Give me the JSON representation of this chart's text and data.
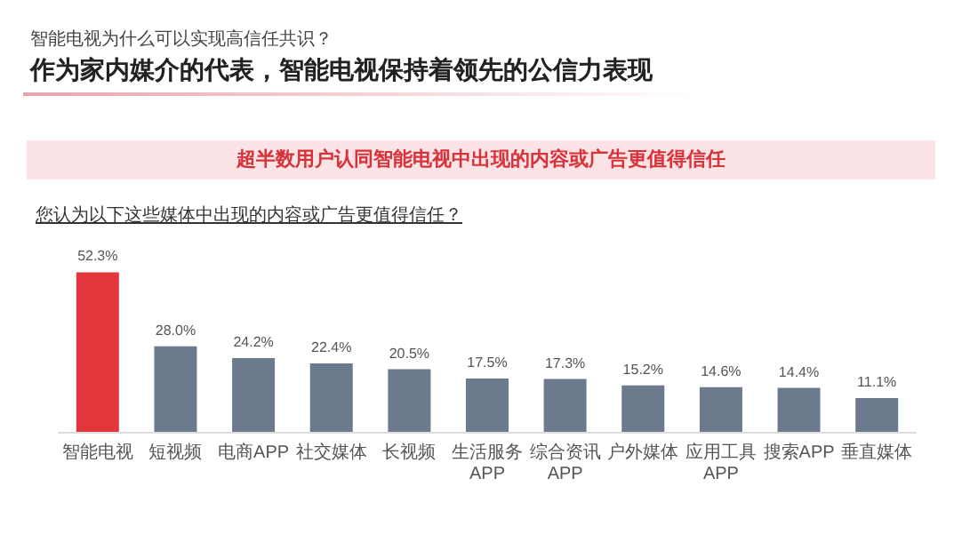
{
  "chart_data": {
    "type": "bar",
    "subtitle": "智能电视为什么可以实现高信任共识？",
    "title": "作为家内媒介的代表，智能电视保持着领先的公信力表现",
    "annotations": [
      "超半数用户认同智能电视中出现的内容或广告更值得信任"
    ],
    "ylabel": "您认为以下这些媒体中出现的内容或广告更值得信任？",
    "categories": [
      "智能电视",
      "短视频",
      "电商APP",
      "社交媒体",
      "长视频",
      "生活服务APP",
      "综合资讯APP",
      "户外媒体",
      "应用工具APP",
      "搜索APP",
      "垂直媒体"
    ],
    "values": [
      52.3,
      28.0,
      24.2,
      22.4,
      20.5,
      17.5,
      17.3,
      15.2,
      14.6,
      14.4,
      11.1
    ],
    "value_labels": [
      "52.3%",
      "28.0%",
      "24.2%",
      "22.4%",
      "20.5%",
      "17.5%",
      "17.3%",
      "15.2%",
      "14.6%",
      "14.4%",
      "11.1%"
    ],
    "colors": [
      "#e2363c",
      "#6c7a8e",
      "#6c7a8e",
      "#6c7a8e",
      "#6c7a8e",
      "#6c7a8e",
      "#6c7a8e",
      "#6c7a8e",
      "#6c7a8e",
      "#6c7a8e",
      "#6c7a8e"
    ],
    "tick_labels": "x",
    "grid": false
  }
}
